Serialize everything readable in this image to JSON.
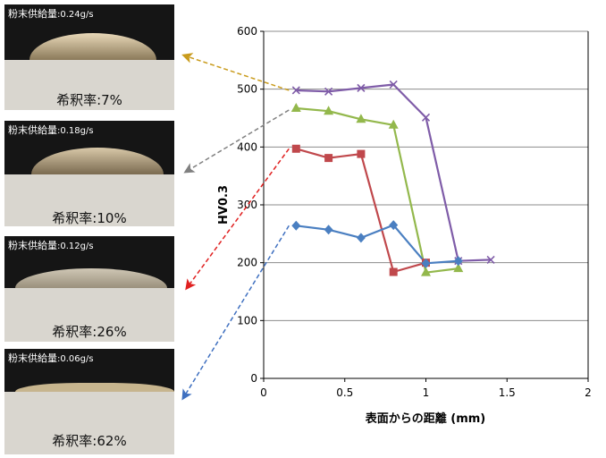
{
  "panels": [
    {
      "feed_label": "粉末供給量",
      "feed_value": ":0.24g/s",
      "ratio_label": "希釈率",
      "ratio_value": ":7%"
    },
    {
      "feed_label": "粉末供給量",
      "feed_value": ":0.18g/s",
      "ratio_label": "希釈率",
      "ratio_value": ":10%"
    },
    {
      "feed_label": "粉末供給量",
      "feed_value": ":0.12g/s",
      "ratio_label": "希釈率",
      "ratio_value": ":26%"
    },
    {
      "feed_label": "粉末供給量",
      "feed_value": ":0.06g/s",
      "ratio_label": "希釈率",
      "ratio_value": ":62%"
    }
  ],
  "chart_data": {
    "type": "line",
    "title": "",
    "xlabel": "表面からの距離 (mm)",
    "ylabel": "HV0.3",
    "xlim": [
      0,
      2
    ],
    "ylim": [
      0,
      600
    ],
    "xticks": [
      "0",
      "0.5",
      "1",
      "1.5",
      "2"
    ],
    "yticks": [
      "0",
      "100",
      "200",
      "300",
      "400",
      "500",
      "600"
    ],
    "grid": "horizontal",
    "legend": "none",
    "series": [
      {
        "marker": "x",
        "color": "#7f5ca8",
        "x": [
          0.2,
          0.4,
          0.6,
          0.8,
          1.0,
          1.2,
          1.4
        ],
        "y": [
          498,
          496,
          502,
          508,
          451,
          203,
          205
        ]
      },
      {
        "marker": "triangle",
        "color": "#93b84c",
        "x": [
          0.2,
          0.4,
          0.6,
          0.8,
          1.0,
          1.2
        ],
        "y": [
          467,
          462,
          448,
          438,
          183,
          190
        ]
      },
      {
        "marker": "square",
        "color": "#c0484c",
        "x": [
          0.2,
          0.4,
          0.6,
          0.8,
          1.0
        ],
        "y": [
          397,
          381,
          388,
          184,
          200
        ]
      },
      {
        "marker": "diamond",
        "color": "#4a7fc1",
        "x": [
          0.2,
          0.4,
          0.6,
          0.8,
          1.0,
          1.2
        ],
        "y": [
          264,
          257,
          243,
          265,
          199,
          203
        ]
      }
    ]
  },
  "arrows": [
    {
      "color": "#c99b1c"
    },
    {
      "color": "#808080"
    },
    {
      "color": "#e02020"
    },
    {
      "color": "#3f70c0"
    }
  ]
}
